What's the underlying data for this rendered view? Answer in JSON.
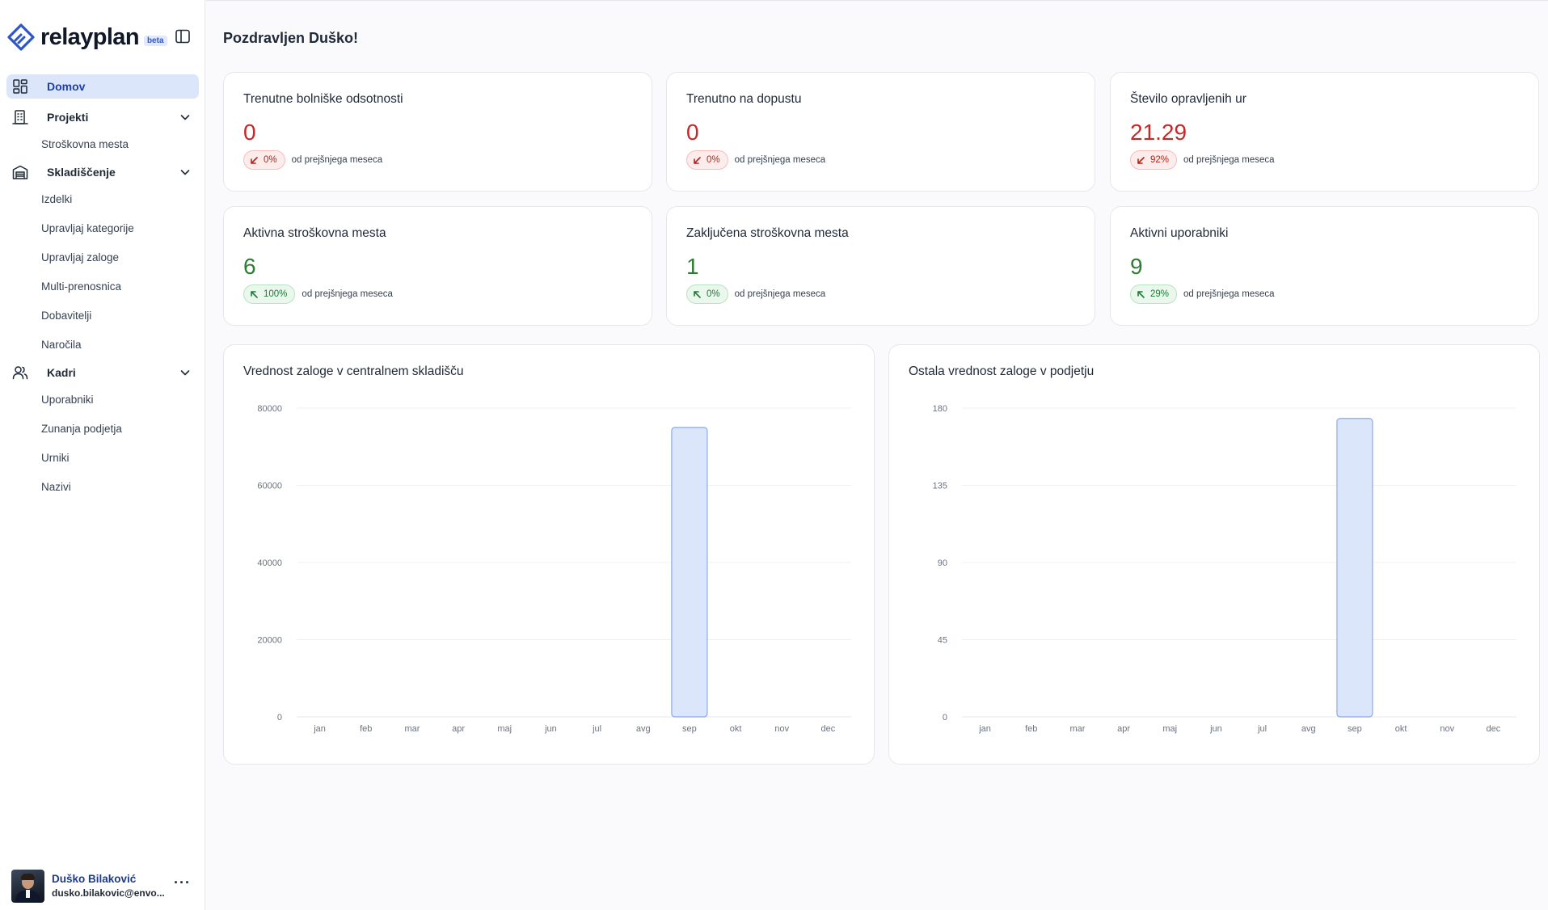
{
  "brand": {
    "name": "relayplan",
    "badge": "beta"
  },
  "nav": {
    "home": {
      "label": "Domov",
      "icon": "dashboard-grid-icon"
    },
    "projects": {
      "label": "Projekti",
      "icon": "building-icon",
      "items": [
        "Stroškovna mesta"
      ]
    },
    "warehouse": {
      "label": "Skladiščenje",
      "icon": "warehouse-icon",
      "items": [
        "Izdelki",
        "Upravljaj kategorije",
        "Upravljaj zaloge",
        "Multi-prenosnica",
        "Dobavitelji",
        "Naročila"
      ]
    },
    "staff": {
      "label": "Kadri",
      "icon": "users-icon",
      "items": [
        "Uporabniki",
        "Zunanja podjetja",
        "Urniki",
        "Nazivi"
      ]
    }
  },
  "user": {
    "name": "Duško Bilaković",
    "email": "dusko.bilakovic@envo..."
  },
  "greeting": "Pozdravljen Duško!",
  "stats": [
    {
      "title": "Trenutne bolniške odsotnosti",
      "value": "0",
      "change": "0%",
      "trend": "down",
      "color": "#c62828",
      "note": "od prejšnjega meseca"
    },
    {
      "title": "Trenutno na dopustu",
      "value": "0",
      "change": "0%",
      "trend": "down",
      "color": "#c62828",
      "note": "od prejšnjega meseca"
    },
    {
      "title": "Število opravljenih ur",
      "value": "21.29",
      "change": "92%",
      "trend": "down",
      "color": "#c62828",
      "note": "od prejšnjega meseca"
    },
    {
      "title": "Aktivna stroškovna mesta",
      "value": "6",
      "change": "100%",
      "trend": "up",
      "color": "#2e7d32",
      "note": "od prejšnjega meseca"
    },
    {
      "title": "Zaključena stroškovna mesta",
      "value": "1",
      "change": "0%",
      "trend": "up",
      "color": "#2e7d32",
      "note": "od prejšnjega meseca"
    },
    {
      "title": "Aktivni uporabniki",
      "value": "9",
      "change": "29%",
      "trend": "up",
      "color": "#2e7d32",
      "note": "od prejšnjega meseca"
    }
  ],
  "chart_data": [
    {
      "type": "bar",
      "title": "Vrednost zaloge v centralnem skladišču",
      "categories": [
        "jan",
        "feb",
        "mar",
        "apr",
        "maj",
        "jun",
        "jul",
        "avg",
        "sep",
        "okt",
        "nov",
        "dec"
      ],
      "values": [
        0,
        0,
        0,
        0,
        0,
        0,
        0,
        0,
        75000,
        0,
        0,
        0
      ],
      "yticks": [
        "0",
        "20000",
        "40000",
        "60000",
        "80000"
      ],
      "ylim": [
        0,
        80000
      ],
      "xlabel": "",
      "ylabel": "",
      "grid": true,
      "bar_color": "#dce6fa",
      "bar_border": "#8aa8ea"
    },
    {
      "type": "bar",
      "title": "Ostala vrednost zaloge v podjetju",
      "categories": [
        "jan",
        "feb",
        "mar",
        "apr",
        "maj",
        "jun",
        "jul",
        "avg",
        "sep",
        "okt",
        "nov",
        "dec"
      ],
      "values": [
        0,
        0,
        0,
        0,
        0,
        0,
        0,
        0,
        174,
        0,
        0,
        0
      ],
      "yticks": [
        "0",
        "45",
        "90",
        "135",
        "180"
      ],
      "ylim": [
        0,
        180
      ],
      "xlabel": "",
      "ylabel": "",
      "grid": true,
      "bar_color": "#dce6fa",
      "bar_border": "#8aa8ea"
    }
  ]
}
